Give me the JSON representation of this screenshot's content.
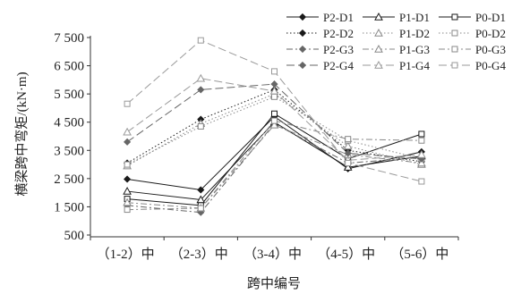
{
  "chart_data": {
    "type": "line",
    "xlabel": "跨中编号",
    "ylabel": "横梁跨中弯矩/(kN·m)",
    "categories": [
      "（1-2）中",
      "（2-3）中",
      "（3-4）中",
      "（4-5）中",
      "（5-6）中"
    ],
    "ylim": [
      500,
      7500
    ],
    "yticks": [
      500,
      1500,
      2500,
      3500,
      4500,
      5500,
      6500,
      7500
    ],
    "ytick_labels": [
      "500",
      "1 500",
      "2 500",
      "3 500",
      "4 500",
      "5 500",
      "6 500",
      "7 500"
    ],
    "grid": false,
    "legend_position": "top-right",
    "series": [
      {
        "name": "P2-D1",
        "values": [
          2480,
          2100,
          4700,
          2850,
          3450
        ],
        "dash": "solid",
        "marker": "diamond",
        "color": "#1a1a1a"
      },
      {
        "name": "P1-D1",
        "values": [
          2050,
          1750,
          4500,
          2900,
          3300
        ],
        "dash": "solid",
        "marker": "triangle",
        "color": "#1a1a1a"
      },
      {
        "name": "P0-D1",
        "values": [
          1780,
          1550,
          4800,
          3200,
          4080
        ],
        "dash": "solid",
        "marker": "square",
        "color": "#1a1a1a"
      },
      {
        "name": "P2-D2",
        "values": [
          3050,
          4600,
          5650,
          3500,
          3100
        ],
        "dash": "dotted",
        "marker": "diamond",
        "color": "#1a1a1a"
      },
      {
        "name": "P1-D2",
        "values": [
          2950,
          4450,
          5500,
          3650,
          3000
        ],
        "dash": "dotted",
        "marker": "triangle",
        "color": "#888888"
      },
      {
        "name": "P0-D2",
        "values": [
          3000,
          4350,
          5400,
          3850,
          3200
        ],
        "dash": "dotted",
        "marker": "square",
        "color": "#888888"
      },
      {
        "name": "P2-G3",
        "values": [
          1550,
          1300,
          4450,
          3050,
          3250
        ],
        "dash": "dashdot",
        "marker": "diamond",
        "color": "#666666"
      },
      {
        "name": "P1-G3",
        "values": [
          1650,
          1450,
          4400,
          3350,
          3050
        ],
        "dash": "dashdot",
        "marker": "triangle",
        "color": "#888888"
      },
      {
        "name": "P0-G3",
        "values": [
          1400,
          1450,
          4550,
          3900,
          3850
        ],
        "dash": "dashdot",
        "marker": "square",
        "color": "#888888"
      },
      {
        "name": "P2-G4",
        "values": [
          3800,
          5650,
          5850,
          3400,
          3200
        ],
        "dash": "longdash",
        "marker": "diamond",
        "color": "#666666"
      },
      {
        "name": "P1-G4",
        "values": [
          4150,
          6050,
          5600,
          3150,
          3350
        ],
        "dash": "longdash",
        "marker": "triangle",
        "color": "#999999"
      },
      {
        "name": "P0-G4",
        "values": [
          5150,
          7400,
          6300,
          3050,
          2400
        ],
        "dash": "longdash",
        "marker": "square",
        "color": "#999999"
      }
    ]
  }
}
